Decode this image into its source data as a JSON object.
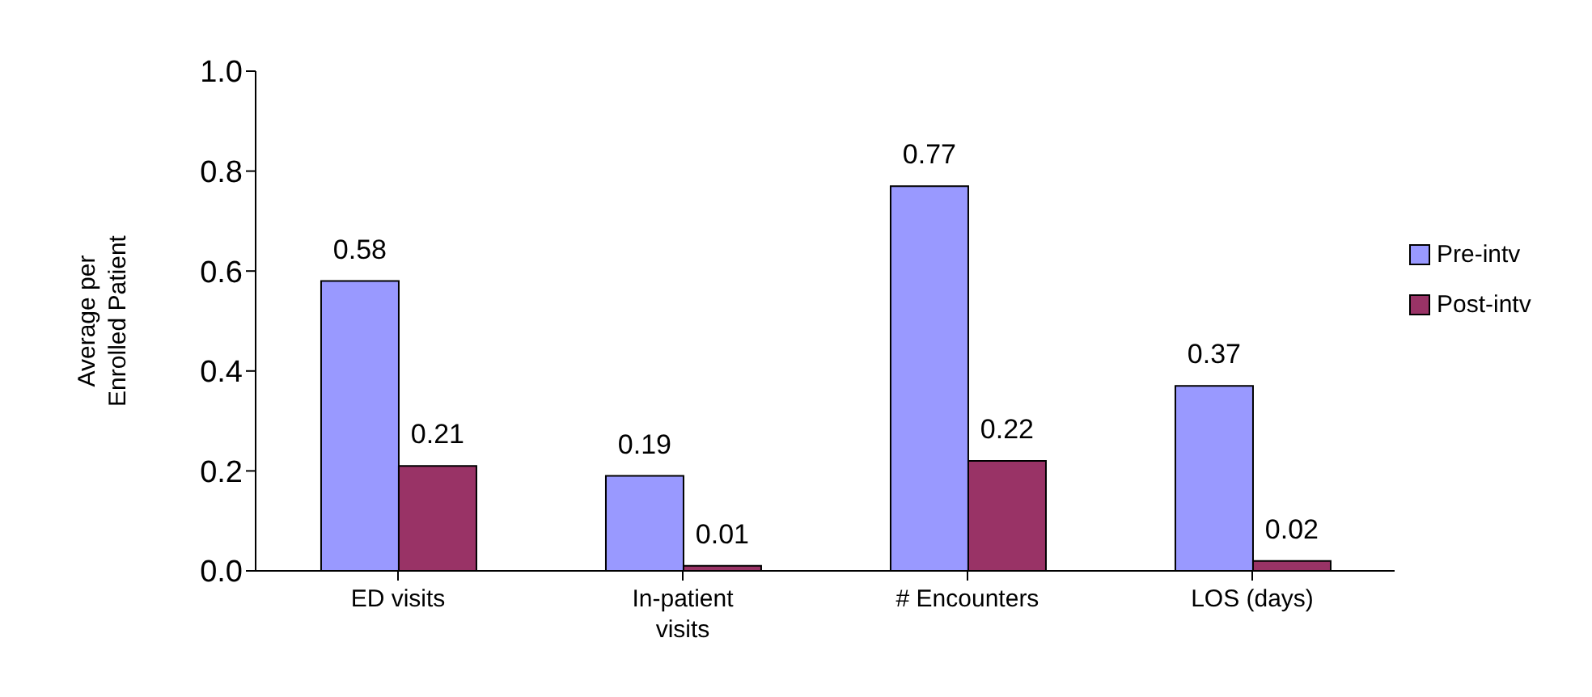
{
  "chart_data": {
    "type": "bar",
    "ylabel": "Average per Enrolled Patient",
    "categories": [
      "ED visits",
      "In-patient visits",
      "# Encounters",
      "LOS (days)"
    ],
    "series": [
      {
        "name": "Pre-intv",
        "color": "#9999ff",
        "values": [
          0.58,
          0.19,
          0.77,
          0.37
        ]
      },
      {
        "name": "Post-intv",
        "color": "#993366",
        "values": [
          0.21,
          0.01,
          0.22,
          0.02
        ]
      }
    ],
    "ylim": [
      0,
      1
    ],
    "yticks": [
      {
        "value": 0,
        "label": "0.0"
      },
      {
        "value": 0.2,
        "label": "0.2"
      },
      {
        "value": 0.4,
        "label": "0.4"
      },
      {
        "value": 0.6,
        "label": "0.6"
      },
      {
        "value": 0.8,
        "label": "0.8"
      },
      {
        "value": 1,
        "label": "1.0"
      }
    ],
    "grid": false,
    "legend": "right",
    "data_labels": true
  }
}
